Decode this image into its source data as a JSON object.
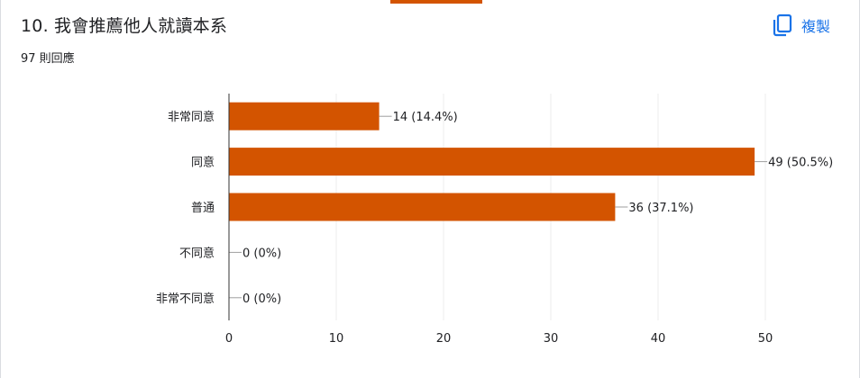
{
  "header": {
    "question_title": "10. 我會推薦他人就讀本系",
    "response_count": "97 則回應",
    "copy_label": "複製",
    "copy_icon": "copy-icon"
  },
  "colors": {
    "bar": "#d35400",
    "accent_strip": "#d35400",
    "link": "#1a73e8",
    "grid": "#eeeeee"
  },
  "chart_data": {
    "type": "bar",
    "orientation": "horizontal",
    "categories": [
      "非常同意",
      "同意",
      "普通",
      "不同意",
      "非常不同意"
    ],
    "values": [
      14,
      49,
      36,
      0,
      0
    ],
    "data_labels": [
      "14 (14.4%)",
      "49 (50.5%)",
      "36 (37.1%)",
      "0 (0%)",
      "0 (0%)"
    ],
    "xlim": [
      0,
      50
    ],
    "x_ticks": [
      0,
      10,
      20,
      30,
      40,
      50
    ],
    "grid": true,
    "legend": "none"
  }
}
